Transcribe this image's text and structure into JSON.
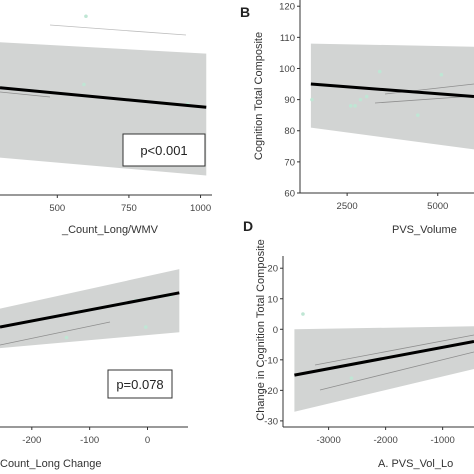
{
  "chart_data": [
    {
      "panel": "",
      "type": "scatter",
      "title": "",
      "xlabel": "_Count_Long/WMV",
      "ylabel": "",
      "xlim": [
        300,
        1040
      ],
      "ylim": [
        0,
        120
      ],
      "xticks": [
        500,
        750,
        1000
      ],
      "yticks": [],
      "points": [
        {
          "x": 600,
          "y": 110
        },
        {
          "x": 593,
          "y": 68
        },
        {
          "x": 955,
          "y": 56
        }
      ],
      "fit": {
        "x": [
          300,
          1020
        ],
        "y": [
          66,
          54
        ]
      },
      "ci_band": {
        "x": [
          300,
          1020
        ],
        "upper": [
          94,
          87
        ],
        "lower": [
          23,
          12
        ]
      },
      "annotation": "p<0.001"
    },
    {
      "panel": "B",
      "type": "scatter",
      "title": "",
      "xlabel": "PVS_Volume",
      "ylabel": "Cognition Total Composite",
      "xlim": [
        1200,
        6000
      ],
      "ylim": [
        60,
        122
      ],
      "xticks": [
        2500,
        5000
      ],
      "yticks": [
        60,
        70,
        80,
        90,
        100,
        110,
        120
      ],
      "points": [
        {
          "x": 1530,
          "y": 90
        },
        {
          "x": 2600,
          "y": 88
        },
        {
          "x": 2720,
          "y": 88
        },
        {
          "x": 2870,
          "y": 90
        },
        {
          "x": 3040,
          "y": 91
        },
        {
          "x": 3400,
          "y": 99
        },
        {
          "x": 4450,
          "y": 85
        },
        {
          "x": 5100,
          "y": 98
        }
      ],
      "fit": {
        "x": [
          1500,
          6000
        ],
        "y": [
          95,
          91
        ]
      },
      "ci_band": {
        "x": [
          1500,
          6000
        ],
        "upper": [
          108,
          107
        ],
        "lower": [
          81,
          74
        ]
      }
    },
    {
      "panel": "",
      "type": "scatter",
      "title": "",
      "xlabel": "Count_Long Change",
      "ylabel": "",
      "xlim": [
        -255,
        70
      ],
      "ylim": [
        -40,
        25
      ],
      "xticks": [
        -200,
        -100,
        0
      ],
      "yticks": [],
      "points": [
        {
          "x": -20,
          "y": 8
        },
        {
          "x": -3,
          "y": -2
        },
        {
          "x": -140,
          "y": -6
        },
        {
          "x": 40,
          "y": 10
        }
      ],
      "fit": {
        "x": [
          -255,
          55
        ],
        "y": [
          -2,
          11
        ]
      },
      "ci_band": {
        "x": [
          -255,
          55
        ],
        "upper": [
          5,
          20
        ],
        "lower": [
          -10,
          -4
        ]
      },
      "annotation": "p=0.078"
    },
    {
      "panel": "D",
      "type": "scatter",
      "title": "",
      "xlabel": "A. PVS_Vol_Lo",
      "ylabel": "Change in Cognition Total Composite",
      "xlim": [
        -3800,
        -450
      ],
      "ylim": [
        -32,
        24
      ],
      "xticks": [
        -3000,
        -2000,
        -1000
      ],
      "yticks": [
        -30,
        -20,
        -10,
        0,
        10,
        20
      ],
      "points": [
        {
          "x": -3450,
          "y": 5
        },
        {
          "x": -2600,
          "y": -16
        }
      ],
      "fit": {
        "x": [
          -3600,
          -450
        ],
        "y": [
          -15,
          -4
        ]
      },
      "ci_band": {
        "x": [
          -3600,
          -450
        ],
        "upper": [
          0,
          1
        ],
        "lower": [
          -27,
          -13
        ]
      }
    }
  ]
}
